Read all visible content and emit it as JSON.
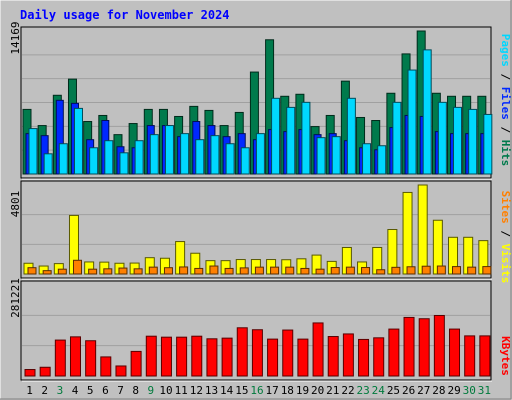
{
  "page": {
    "title": "Daily usage for November 2024"
  },
  "colors": {
    "background": "#c0c0c0",
    "title": "#0000ff",
    "hits": "#007a4c",
    "files": "#0028ff",
    "pages": "#00d8ff",
    "visits": "#ffff00",
    "sites": "#ff8000",
    "kbytes": "#ff0000",
    "weekend_day_label": "#007a3c",
    "weekday_day_label": "#000000"
  },
  "chart_data": [
    {
      "type": "bar",
      "name": "hits-files-pages",
      "categories": [
        "1",
        "2",
        "3",
        "4",
        "5",
        "6",
        "7",
        "8",
        "9",
        "10",
        "11",
        "12",
        "13",
        "14",
        "15",
        "16",
        "17",
        "18",
        "19",
        "20",
        "21",
        "22",
        "23",
        "24",
        "25",
        "26",
        "27",
        "28",
        "29",
        "30",
        "31"
      ],
      "ymax_label": "14169",
      "ymax": 14169,
      "ylabel_parts": [
        "Pages",
        "Files",
        "Hits"
      ],
      "series": [
        {
          "name": "Hits",
          "values": [
            6400,
            4800,
            7800,
            9400,
            5200,
            5800,
            3900,
            5000,
            6400,
            6400,
            5700,
            6700,
            6300,
            4800,
            6100,
            10100,
            13300,
            7700,
            7900,
            4700,
            5800,
            9200,
            5600,
            5300,
            8000,
            11900,
            14169,
            8000,
            7700,
            7700,
            7700
          ]
        },
        {
          "name": "Files",
          "values": [
            4000,
            3800,
            7300,
            7000,
            3400,
            5300,
            2700,
            2600,
            4800,
            4800,
            3700,
            5200,
            4800,
            3700,
            4000,
            3400,
            4400,
            4200,
            4400,
            3900,
            4000,
            3300,
            2600,
            2400,
            4600,
            5800,
            5700,
            4200,
            4000,
            4000,
            4000
          ]
        },
        {
          "name": "Pages",
          "values": [
            4500,
            2000,
            3000,
            6500,
            2600,
            3300,
            2100,
            3300,
            3900,
            4800,
            4000,
            3400,
            3800,
            3000,
            2600,
            4000,
            7500,
            6600,
            7100,
            3600,
            3700,
            7500,
            3000,
            2800,
            7100,
            10300,
            12300,
            7100,
            6600,
            6400,
            5900
          ]
        }
      ]
    },
    {
      "type": "bar",
      "name": "visits-sites",
      "categories": [
        "1",
        "2",
        "3",
        "4",
        "5",
        "6",
        "7",
        "8",
        "9",
        "10",
        "11",
        "12",
        "13",
        "14",
        "15",
        "16",
        "17",
        "18",
        "19",
        "20",
        "21",
        "22",
        "23",
        "24",
        "25",
        "26",
        "27",
        "28",
        "29",
        "30",
        "31"
      ],
      "ymax_label": "4801",
      "ymax": 4801,
      "ylabel_parts": [
        "Sites",
        "Visits"
      ],
      "series": [
        {
          "name": "Visits",
          "values": [
            580,
            430,
            560,
            3160,
            650,
            640,
            580,
            590,
            880,
            850,
            1750,
            1120,
            720,
            720,
            780,
            780,
            780,
            770,
            820,
            1020,
            680,
            1430,
            650,
            1430,
            2400,
            4400,
            4801,
            2900,
            1980,
            1980,
            1800
          ]
        },
        {
          "name": "Sites",
          "values": [
            340,
            180,
            260,
            740,
            260,
            280,
            320,
            280,
            370,
            340,
            380,
            300,
            430,
            300,
            330,
            370,
            370,
            370,
            300,
            260,
            350,
            370,
            350,
            230,
            360,
            390,
            420,
            430,
            400,
            370,
            400
          ]
        }
      ]
    },
    {
      "type": "bar",
      "name": "kbytes",
      "categories": [
        "1",
        "2",
        "3",
        "4",
        "5",
        "6",
        "7",
        "8",
        "9",
        "10",
        "11",
        "12",
        "13",
        "14",
        "15",
        "16",
        "17",
        "18",
        "19",
        "20",
        "21",
        "22",
        "23",
        "24",
        "25",
        "26",
        "27",
        "28",
        "29",
        "30",
        "31"
      ],
      "ymax_label": "281221",
      "ymax": 281221,
      "ylabel": "KBytes",
      "series": [
        {
          "name": "KBytes",
          "values": [
            20000,
            27000,
            111000,
            121000,
            109000,
            59000,
            31000,
            76000,
            123000,
            120000,
            120000,
            123000,
            115000,
            117000,
            149000,
            143000,
            114000,
            142000,
            114000,
            164000,
            122000,
            130000,
            113000,
            118000,
            145000,
            181000,
            177000,
            187000,
            145000,
            124000,
            124000
          ]
        }
      ]
    }
  ]
}
